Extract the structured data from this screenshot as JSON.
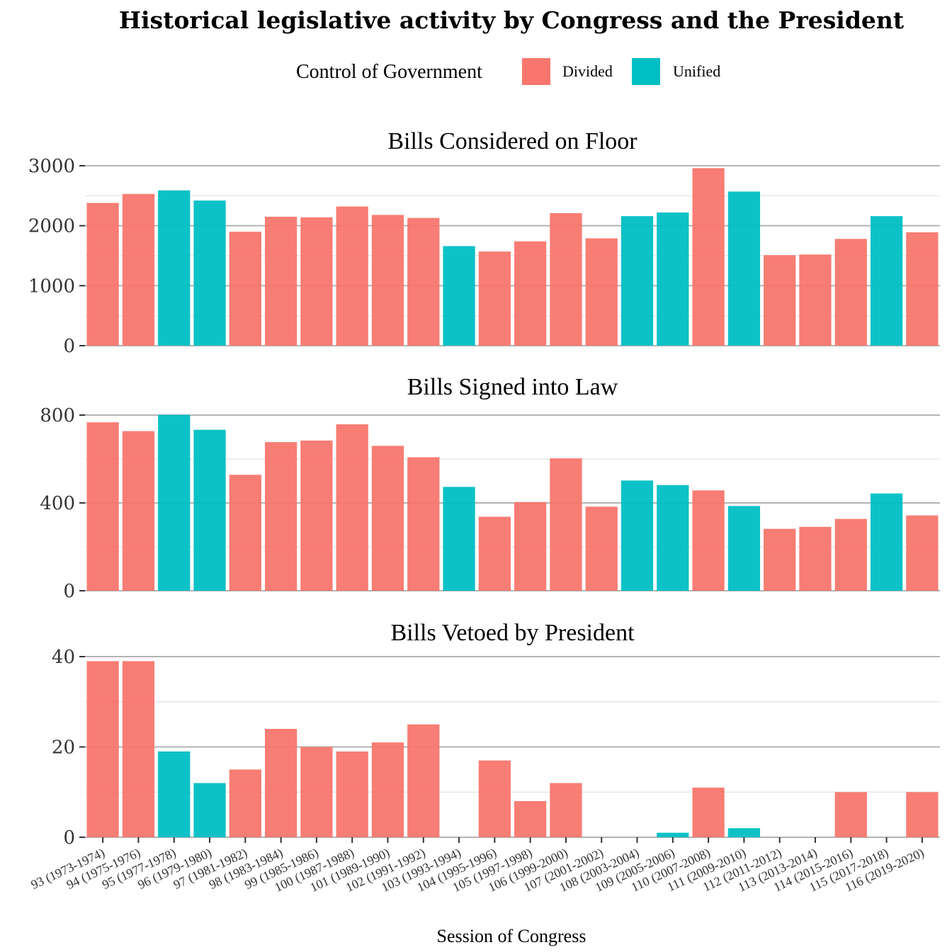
{
  "chart_data": {
    "type": "bar",
    "title": "Historical legislative activity by Congress and the President",
    "xlabel": "Session of Congress",
    "legend": {
      "title": "Control of Government",
      "placement": "top",
      "entries": [
        {
          "name": "Divided",
          "color": "#F8766D"
        },
        {
          "name": "Unified",
          "color": "#00BFC4"
        }
      ]
    },
    "categories": [
      "93 (1973-1974)",
      "94 (1975-1976)",
      "95 (1977-1978)",
      "96 (1979-1980)",
      "97 (1981-1982)",
      "98 (1983-1984)",
      "99 (1985-1986)",
      "100 (1987-1988)",
      "101 (1989-1990)",
      "102 (1991-1992)",
      "103 (1993-1994)",
      "104 (1995-1996)",
      "105 (1997-1998)",
      "106 (1999-2000)",
      "107 (2001-2002)",
      "108 (2003-2004)",
      "109 (2005-2006)",
      "110 (2007-2008)",
      "111 (2009-2010)",
      "112 (2011-2012)",
      "113 (2013-2014)",
      "114 (2015-2016)",
      "115 (2017-2018)",
      "116 (2019-2020)"
    ],
    "control": [
      "Divided",
      "Divided",
      "Unified",
      "Unified",
      "Divided",
      "Divided",
      "Divided",
      "Divided",
      "Divided",
      "Divided",
      "Unified",
      "Divided",
      "Divided",
      "Divided",
      "Divided",
      "Unified",
      "Unified",
      "Divided",
      "Unified",
      "Divided",
      "Divided",
      "Divided",
      "Unified",
      "Divided"
    ],
    "panels": [
      {
        "title": "Bills Considered on Floor",
        "ylim": [
          0,
          3000
        ],
        "yticks": [
          0,
          1000,
          2000,
          3000
        ],
        "ytick_labels": [
          "0",
          "1000",
          "2000",
          "3000"
        ],
        "values": [
          2380,
          2530,
          2590,
          2420,
          1900,
          2150,
          2140,
          2320,
          2180,
          2130,
          1660,
          1570,
          1740,
          2210,
          1790,
          2160,
          2220,
          2960,
          2570,
          1510,
          1520,
          1780,
          2160,
          1890
        ]
      },
      {
        "title": "Bills Signed into Law",
        "ylim": [
          0,
          800
        ],
        "yticks": [
          0,
          400,
          800
        ],
        "ytick_labels": [
          "0",
          "400",
          "800"
        ],
        "values": [
          767,
          727,
          801,
          733,
          528,
          677,
          684,
          758,
          660,
          608,
          473,
          337,
          404,
          603,
          383,
          502,
          481,
          457,
          386,
          282,
          291,
          327,
          443,
          343
        ]
      },
      {
        "title": "Bills Vetoed by President",
        "ylim": [
          0,
          40
        ],
        "yticks": [
          0,
          20,
          40
        ],
        "ytick_labels": [
          "0",
          "20",
          "40"
        ],
        "values": [
          39,
          39,
          19,
          12,
          15,
          24,
          20,
          19,
          21,
          25,
          0,
          17,
          8,
          12,
          0,
          0,
          1,
          11,
          2,
          0,
          0,
          10,
          0,
          10
        ]
      }
    ]
  }
}
